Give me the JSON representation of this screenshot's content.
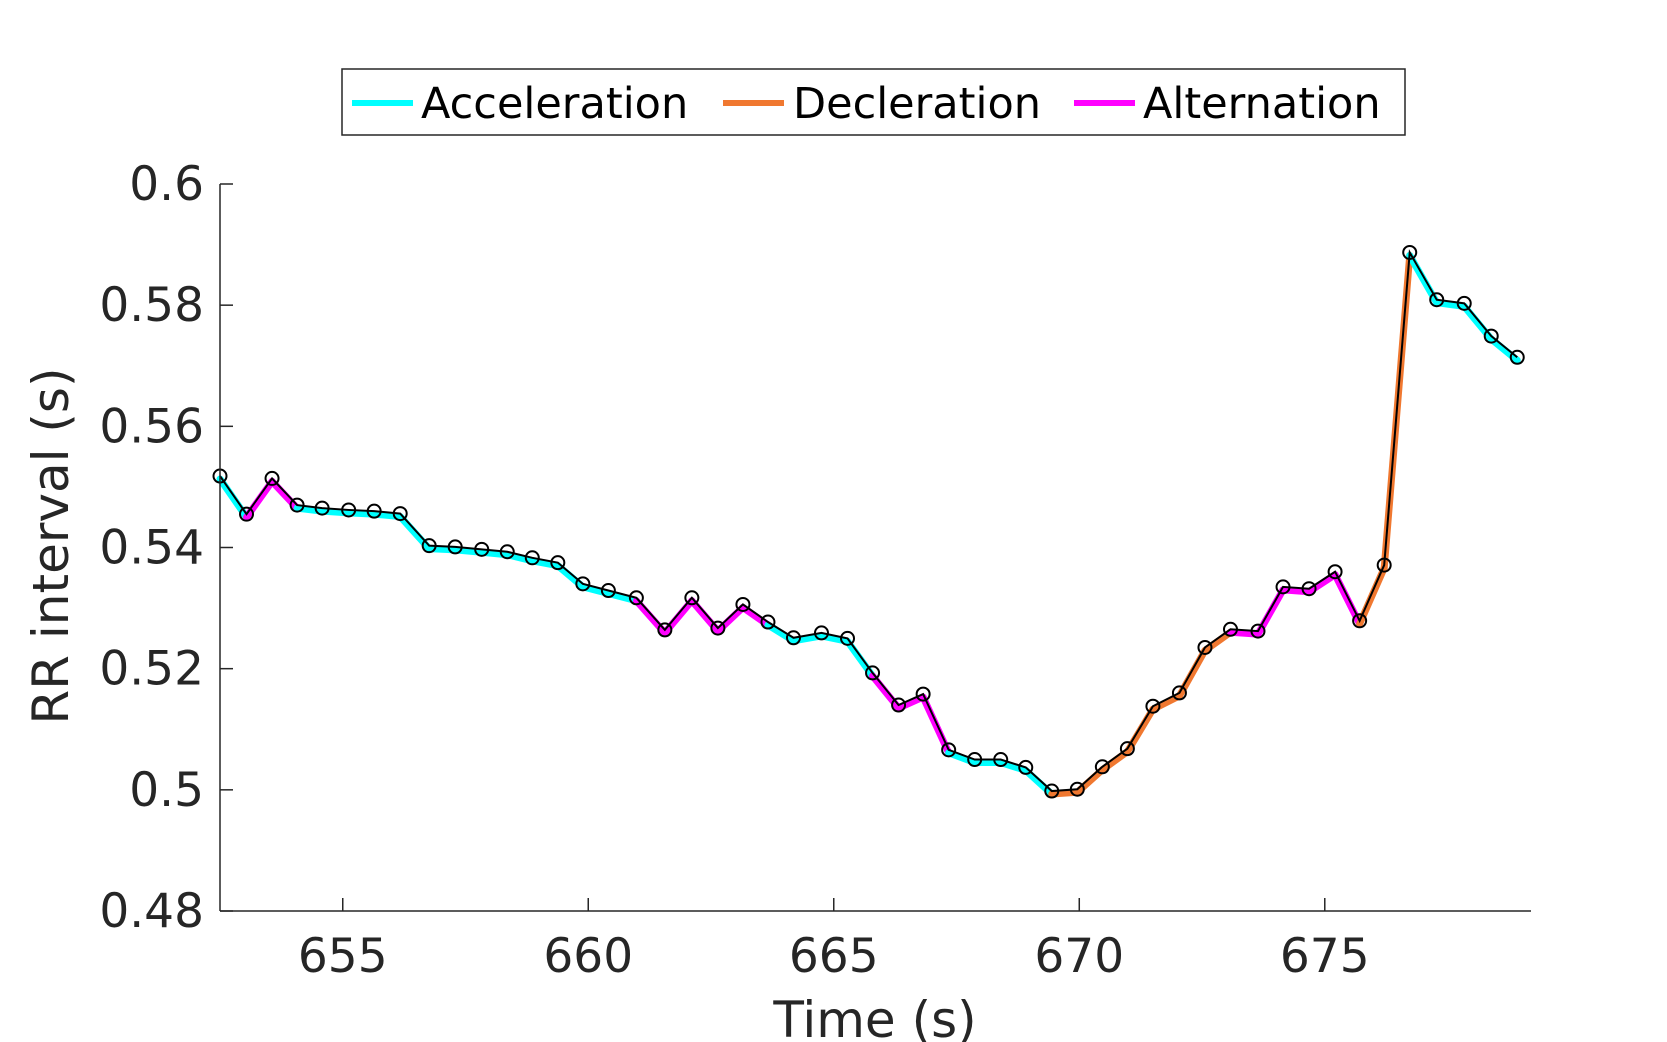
{
  "chart_data": {
    "type": "line",
    "xlabel": "Time (s)",
    "ylabel": "RR interval (s)",
    "xlim": [
      652.5,
      679.2
    ],
    "ylim": [
      0.48,
      0.6
    ],
    "xticks": [
      655,
      660,
      665,
      670,
      675
    ],
    "xtick_labels": [
      "655",
      "660",
      "665",
      "670",
      "675"
    ],
    "yticks": [
      0.48,
      0.5,
      0.52,
      0.54,
      0.56,
      0.58,
      0.6
    ],
    "ytick_labels": [
      "0.48",
      "0.5",
      "0.52",
      "0.54",
      "0.56",
      "0.58",
      "0.6"
    ],
    "grid": false,
    "legend_position": "top-center",
    "legend": [
      {
        "label": "Acceleration",
        "color": "#00FFFF"
      },
      {
        "label": "Decleration",
        "color": "#F07830"
      },
      {
        "label": "Alternation",
        "color": "#FF00FF"
      }
    ],
    "main_series_color": "#000000",
    "x": [
      652.5,
      653.04,
      653.56,
      654.07,
      654.58,
      655.12,
      655.64,
      656.17,
      656.76,
      657.29,
      657.83,
      658.35,
      658.86,
      659.38,
      659.89,
      660.41,
      660.98,
      661.56,
      662.11,
      662.64,
      663.15,
      663.66,
      664.18,
      664.75,
      665.28,
      665.79,
      666.32,
      666.82,
      667.34,
      667.87,
      668.4,
      668.91,
      669.44,
      669.96,
      670.47,
      670.98,
      671.5,
      672.04,
      672.56,
      673.08,
      673.64,
      674.15,
      674.68,
      675.21,
      675.71,
      676.21,
      676.73,
      677.28,
      677.84,
      678.39,
      678.92
    ],
    "y": [
      0.5518,
      0.5455,
      0.5514,
      0.547,
      0.5465,
      0.5462,
      0.546,
      0.5456,
      0.5403,
      0.5401,
      0.5397,
      0.5393,
      0.5383,
      0.5375,
      0.534,
      0.5329,
      0.5317,
      0.5264,
      0.5317,
      0.5267,
      0.5306,
      0.5277,
      0.5251,
      0.5259,
      0.525,
      0.5193,
      0.514,
      0.5158,
      0.5066,
      0.505,
      0.505,
      0.5037,
      0.4998,
      0.5001,
      0.5038,
      0.5068,
      0.5138,
      0.516,
      0.5235,
      0.5265,
      0.5262,
      0.5335,
      0.5332,
      0.536,
      0.5279,
      0.5371,
      0.5887,
      0.5809,
      0.5803,
      0.5749,
      0.5714
    ],
    "segments": [
      "A",
      "L",
      "L",
      "A",
      "A",
      "A",
      "A",
      "A",
      "A",
      "A",
      "A",
      "A",
      "A",
      "A",
      "A",
      "A",
      "L",
      "L",
      "L",
      "L",
      "L",
      "A",
      "A",
      "A",
      "A",
      "L",
      "L",
      "L",
      "A",
      "A",
      "A",
      "A",
      "D",
      "D",
      "D",
      "D",
      "D",
      "D",
      "D",
      "L",
      "L",
      "L",
      "L",
      "L",
      "D",
      "D",
      "A",
      "A",
      "A",
      "A"
    ]
  }
}
